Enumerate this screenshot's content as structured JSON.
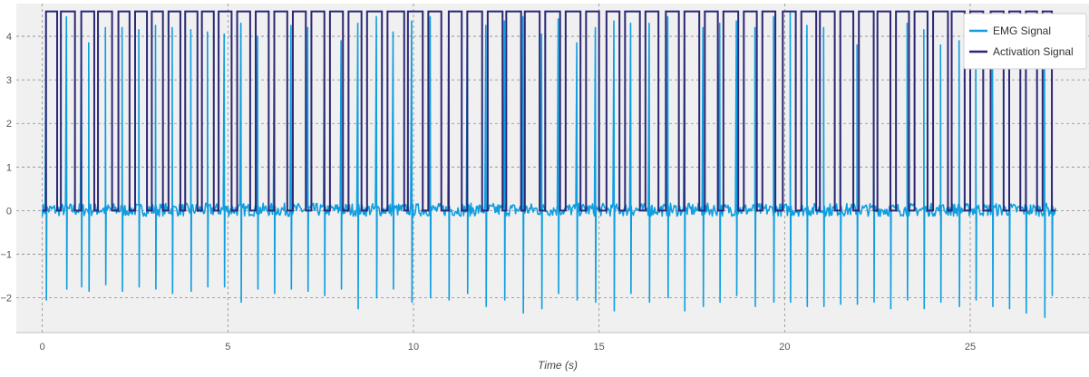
{
  "chart_data": {
    "type": "line",
    "title": "",
    "xlabel": "Time (s)",
    "ylabel": "",
    "xlim": [
      -0.7,
      28.2
    ],
    "ylim": [
      -2.8,
      4.75
    ],
    "x_ticks": [
      0,
      5,
      10,
      15,
      20,
      25
    ],
    "y_ticks": [
      -2,
      -1,
      0,
      1,
      2,
      3,
      4
    ],
    "x_tick_labels": [
      "0",
      "5",
      "10",
      "15",
      "20",
      "25"
    ],
    "y_tick_labels": [
      "−2",
      "−1",
      "0",
      "1",
      "2",
      "3",
      "4"
    ],
    "grid": true,
    "legend_position": "top-right",
    "duration_s": 27.3,
    "series": [
      {
        "name": "EMG Signal",
        "color": "#0f9ee0",
        "baseline_noise_amplitude": 0.15,
        "spike_times": [
          0.1,
          0.65,
          1.05,
          1.25,
          1.7,
          2.15,
          2.6,
          3.05,
          3.5,
          4.0,
          4.45,
          4.9,
          5.35,
          5.8,
          6.25,
          6.7,
          7.15,
          7.6,
          8.05,
          8.5,
          9.0,
          9.45,
          9.95,
          10.45,
          10.95,
          11.45,
          11.95,
          12.45,
          12.95,
          13.45,
          13.9,
          14.4,
          14.9,
          15.4,
          15.85,
          16.35,
          16.85,
          17.3,
          17.8,
          18.25,
          18.7,
          19.2,
          19.7,
          20.15,
          20.6,
          21.05,
          21.5,
          21.95,
          22.4,
          22.85,
          23.3,
          23.75,
          24.2,
          24.7,
          25.15,
          25.6,
          26.05,
          26.5,
          27.0,
          27.2
        ],
        "spike_peaks": [
          4.35,
          4.45,
          4.3,
          3.85,
          4.2,
          4.2,
          4.15,
          4.25,
          4.2,
          4.15,
          4.1,
          4.05,
          4.3,
          4.0,
          4.3,
          4.25,
          4.2,
          4.05,
          3.9,
          4.3,
          4.45,
          4.1,
          4.35,
          4.45,
          4.4,
          4.3,
          4.25,
          4.35,
          4.45,
          4.05,
          4.4,
          3.85,
          4.2,
          4.35,
          4.3,
          4.3,
          4.45,
          4.15,
          4.2,
          4.3,
          4.35,
          4.2,
          4.45,
          4.55,
          4.25,
          4.2,
          4.05,
          3.8,
          4.25,
          4.1,
          4.3,
          4.15,
          3.8,
          3.9,
          4.3,
          3.55,
          3.45,
          3.25,
          3.85,
          1.55
        ],
        "spike_troughs": [
          -2.05,
          -1.8,
          -1.75,
          -1.85,
          -1.7,
          -1.85,
          -1.75,
          -1.8,
          -1.9,
          -1.85,
          -1.75,
          -1.75,
          -2.1,
          -1.8,
          -1.9,
          -1.8,
          -1.85,
          -1.95,
          -1.8,
          -2.25,
          -2.0,
          -1.8,
          -2.1,
          -2.0,
          -2.05,
          -1.9,
          -2.2,
          -2.05,
          -2.35,
          -2.25,
          -1.9,
          -2.05,
          -2.1,
          -2.3,
          -1.9,
          -2.1,
          -2.0,
          -2.3,
          -2.2,
          -2.1,
          -1.95,
          -2.2,
          -2.1,
          -2.1,
          -2.2,
          -2.2,
          -2.15,
          -2.15,
          -2.1,
          -2.25,
          -2.05,
          -2.25,
          -2.1,
          -2.2,
          -2.05,
          -2.2,
          -2.25,
          -2.35,
          -2.45,
          -1.95
        ]
      },
      {
        "name": "Activation Signal",
        "color": "#2b2775",
        "high_level": 4.57,
        "low_level": 0.0,
        "high_intervals": [
          [
            0.1,
            0.4
          ],
          [
            0.5,
            0.88
          ],
          [
            1.05,
            1.4
          ],
          [
            1.5,
            1.88
          ],
          [
            2.05,
            2.35
          ],
          [
            2.5,
            2.82
          ],
          [
            2.95,
            3.25
          ],
          [
            3.4,
            3.72
          ],
          [
            3.85,
            4.18
          ],
          [
            4.3,
            4.62
          ],
          [
            4.75,
            5.1
          ],
          [
            5.25,
            5.6
          ],
          [
            5.75,
            6.1
          ],
          [
            6.25,
            6.6
          ],
          [
            6.75,
            7.1
          ],
          [
            7.25,
            7.6
          ],
          [
            7.75,
            8.1
          ],
          [
            8.25,
            8.6
          ],
          [
            8.75,
            9.15
          ],
          [
            9.3,
            9.75
          ],
          [
            9.85,
            10.25
          ],
          [
            10.4,
            10.75
          ],
          [
            10.95,
            11.3
          ],
          [
            11.45,
            11.85
          ],
          [
            12.0,
            12.4
          ],
          [
            12.5,
            12.9
          ],
          [
            13.0,
            13.4
          ],
          [
            13.55,
            13.95
          ],
          [
            14.1,
            14.5
          ],
          [
            14.65,
            15.0
          ],
          [
            15.2,
            15.55
          ],
          [
            15.7,
            16.1
          ],
          [
            16.25,
            16.6
          ],
          [
            16.8,
            17.15
          ],
          [
            17.3,
            17.7
          ],
          [
            17.85,
            18.2
          ],
          [
            18.35,
            18.75
          ],
          [
            18.9,
            19.25
          ],
          [
            19.4,
            19.75
          ],
          [
            19.95,
            20.3
          ],
          [
            20.45,
            20.85
          ],
          [
            20.95,
            21.35
          ],
          [
            21.5,
            21.85
          ],
          [
            22.0,
            22.4
          ],
          [
            22.5,
            22.85
          ],
          [
            23.0,
            23.35
          ],
          [
            23.5,
            23.85
          ],
          [
            24.0,
            24.4
          ],
          [
            24.5,
            24.85
          ],
          [
            25.0,
            25.35
          ],
          [
            25.55,
            25.9
          ],
          [
            26.05,
            26.35
          ],
          [
            26.5,
            26.8
          ],
          [
            26.95,
            27.2
          ]
        ]
      }
    ]
  }
}
